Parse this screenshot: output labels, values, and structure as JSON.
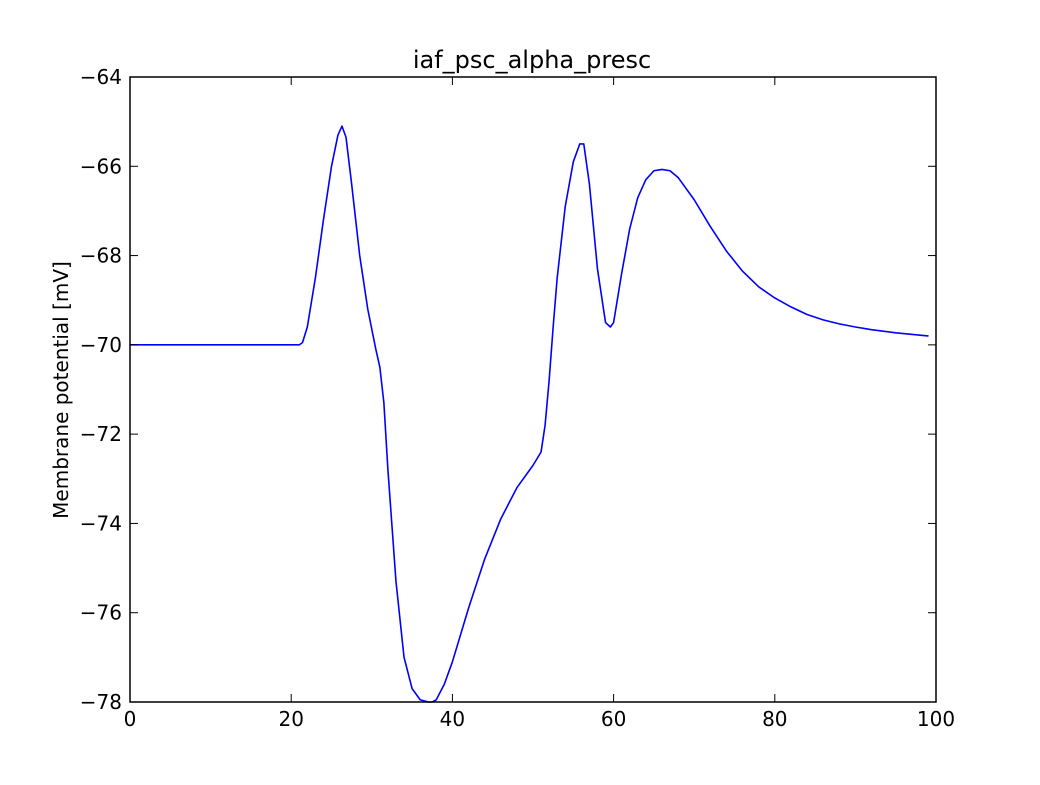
{
  "chart_data": {
    "type": "line",
    "title": "iaf_psc_alpha_presc",
    "xlabel": "",
    "ylabel": "Membrane potential [mV]",
    "xlim": [
      0,
      100
    ],
    "ylim": [
      -78,
      -64
    ],
    "grid": false,
    "legend": "none",
    "xticks": [
      0,
      20,
      40,
      60,
      80,
      100
    ],
    "xtick_labels": [
      "0",
      "20",
      "40",
      "60",
      "80",
      "100"
    ],
    "yticks": [
      -78,
      -76,
      -74,
      -72,
      -70,
      -68,
      -66,
      -64
    ],
    "ytick_labels": [
      "−78",
      "−76",
      "−74",
      "−72",
      "−70",
      "−68",
      "−66",
      "−64"
    ],
    "series": [
      {
        "color": "#0000ff",
        "x": [
          0,
          5,
          10,
          15,
          20,
          21,
          21.4,
          22,
          23,
          24,
          25,
          25.8,
          26.3,
          26.8,
          27.5,
          28.5,
          29.5,
          30.5,
          31,
          31.5,
          32,
          33,
          34,
          35,
          36,
          37,
          37.5,
          38,
          39,
          40,
          42,
          44,
          46,
          48,
          50,
          51,
          51.5,
          52,
          52.5,
          53,
          54,
          55,
          55.8,
          56.3,
          57,
          58,
          59,
          59.6,
          60,
          61,
          62,
          63,
          64,
          65,
          66,
          67,
          68,
          70,
          72,
          74,
          76,
          78,
          80,
          82,
          84,
          86,
          88,
          90,
          92,
          95,
          99
        ],
        "y": [
          -70,
          -70,
          -70,
          -70,
          -70,
          -70,
          -69.95,
          -69.6,
          -68.5,
          -67.2,
          -66.0,
          -65.3,
          -65.1,
          -65.35,
          -66.4,
          -68.0,
          -69.2,
          -70.1,
          -70.5,
          -71.3,
          -72.8,
          -75.3,
          -77.0,
          -77.7,
          -77.95,
          -78.0,
          -78.0,
          -77.95,
          -77.6,
          -77.1,
          -75.9,
          -74.8,
          -73.9,
          -73.2,
          -72.7,
          -72.4,
          -71.8,
          -70.8,
          -69.6,
          -68.5,
          -66.9,
          -65.9,
          -65.5,
          -65.5,
          -66.4,
          -68.3,
          -69.5,
          -69.6,
          -69.5,
          -68.4,
          -67.4,
          -66.7,
          -66.3,
          -66.1,
          -66.07,
          -66.1,
          -66.25,
          -66.75,
          -67.35,
          -67.9,
          -68.35,
          -68.7,
          -68.95,
          -69.15,
          -69.32,
          -69.44,
          -69.53,
          -69.6,
          -69.66,
          -69.73,
          -69.8
        ]
      }
    ]
  }
}
